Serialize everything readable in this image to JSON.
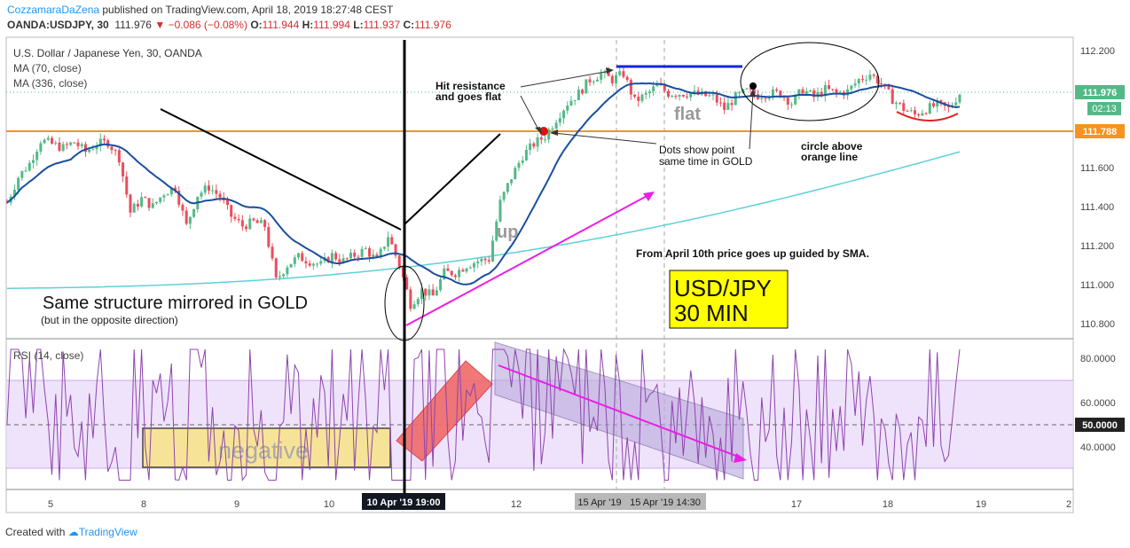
{
  "header": {
    "author": "CozzamaraDaZena",
    "published": " published on TradingView.com, April 18, 2019 18:27:48 CEST",
    "symbol": "OANDA:USDJPY, 30",
    "last": "111.976",
    "change": "−0.086 (−0.08%)",
    "o_label": "O:",
    "o": "111.944",
    "h_label": "H:",
    "h": "111.994",
    "l_label": "L:",
    "l": "111.937",
    "c_label": "C:",
    "c": "111.976"
  },
  "legend": {
    "pair": "U.S. Dollar / Japanese Yen, 30, OANDA",
    "ma70": "MA (70, close)",
    "ma336": "MA (336, close)",
    "rsi": "RSI (14, close)"
  },
  "price_axis": {
    "ticks": [
      "112.200",
      "112.000",
      "111.800",
      "111.600",
      "111.400",
      "111.200",
      "111.000",
      "110.800"
    ],
    "current_price": "111.976",
    "countdown": "02:13",
    "orange_level": "111.788"
  },
  "rsi_axis": {
    "ticks": [
      "80.0000",
      "60.0000",
      "40.0000"
    ],
    "mid_label": "50.0000"
  },
  "time_axis": {
    "labels": [
      "5",
      "8",
      "9",
      "10",
      "12",
      "17",
      "18",
      "19",
      "2"
    ],
    "highlight_1": "10 Apr '19   19:00",
    "highlight_2a": "15 Apr '19",
    "highlight_2b": "15 Apr '19   14:30"
  },
  "annotations": {
    "hit_resistance_1": "Hit resistance",
    "hit_resistance_2": "and goes flat",
    "flat": "flat",
    "up": "up",
    "dots_1": "Dots show point",
    "dots_2": "same time in GOLD",
    "circle_1": "circle above",
    "circle_2": "orange line",
    "sma_note": "From April 10th price goes up guided by SMA.",
    "box_1": "USD/JPY",
    "box_2": "30 MIN",
    "mirror": "Same structure mirrored in GOLD",
    "mirror_sub": "(but in the opposite direction)",
    "negative": "negative"
  },
  "footer": {
    "created": "Created with",
    "brand": "TradingView"
  },
  "colors": {
    "up": "#53b987",
    "down": "#eb4d5c",
    "ma70": "#1a4f9e",
    "ma336": "#5fd0d8",
    "orange": "#f7931e",
    "magenta": "#e91ee6",
    "rsi": "#8e44ad"
  },
  "chart_data": {
    "type": "candlestick",
    "symbol": "OANDA:USDJPY",
    "timeframe": "30",
    "yaxis_ticks": [
      110.8,
      111.0,
      111.2,
      111.4,
      111.6,
      111.8,
      112.0,
      112.2
    ],
    "ylim": [
      110.74,
      112.24
    ],
    "x_labels": [
      "5",
      "8",
      "9",
      "10",
      "12",
      "17",
      "18",
      "19",
      "2"
    ],
    "close_path": [
      [
        0,
        111.42
      ],
      [
        3,
        111.55
      ],
      [
        6,
        111.62
      ],
      [
        9,
        111.74
      ],
      [
        12,
        111.72
      ],
      [
        15,
        111.7
      ],
      [
        18,
        111.73
      ],
      [
        21,
        111.68
      ],
      [
        24,
        111.72
      ],
      [
        27,
        111.73
      ],
      [
        30,
        111.65
      ],
      [
        33,
        111.37
      ],
      [
        36,
        111.44
      ],
      [
        39,
        111.4
      ],
      [
        42,
        111.47
      ],
      [
        45,
        111.5
      ],
      [
        48,
        111.3
      ],
      [
        51,
        111.46
      ],
      [
        54,
        111.5
      ],
      [
        57,
        111.45
      ],
      [
        60,
        111.35
      ],
      [
        63,
        111.3
      ],
      [
        66,
        111.32
      ],
      [
        69,
        111.3
      ],
      [
        72,
        111.02
      ],
      [
        75,
        111.1
      ],
      [
        78,
        111.14
      ],
      [
        81,
        111.12
      ],
      [
        84,
        111.1
      ],
      [
        87,
        111.15
      ],
      [
        90,
        111.12
      ],
      [
        93,
        111.15
      ],
      [
        96,
        111.18
      ],
      [
        99,
        111.12
      ],
      [
        102,
        111.25
      ],
      [
        105,
        111.1
      ],
      [
        108,
        110.9
      ],
      [
        111,
        110.97
      ],
      [
        114,
        110.94
      ],
      [
        117,
        111.06
      ],
      [
        120,
        111.06
      ],
      [
        123,
        111.1
      ],
      [
        126,
        111.12
      ],
      [
        129,
        111.13
      ],
      [
        132,
        111.42
      ],
      [
        135,
        111.55
      ],
      [
        138,
        111.66
      ],
      [
        141,
        111.72
      ],
      [
        144,
        111.76
      ],
      [
        147,
        111.85
      ],
      [
        150,
        111.93
      ],
      [
        153,
        111.98
      ],
      [
        156,
        112.05
      ],
      [
        159,
        112.08
      ],
      [
        162,
        112.05
      ],
      [
        165,
        112.08
      ],
      [
        168,
        111.94
      ],
      [
        171,
        111.97
      ],
      [
        174,
        112.02
      ],
      [
        177,
        111.98
      ],
      [
        180,
        111.98
      ],
      [
        183,
        111.98
      ],
      [
        186,
        111.97
      ],
      [
        189,
        111.96
      ],
      [
        192,
        111.9
      ],
      [
        195,
        111.96
      ],
      [
        198,
        111.99
      ],
      [
        201,
        111.97
      ],
      [
        204,
        111.98
      ],
      [
        207,
        111.98
      ],
      [
        210,
        111.93
      ],
      [
        213,
        112.0
      ],
      [
        216,
        111.96
      ],
      [
        219,
        112.0
      ],
      [
        222,
        111.98
      ],
      [
        225,
        111.99
      ],
      [
        228,
        112.05
      ],
      [
        231,
        112.08
      ],
      [
        234,
        112.03
      ],
      [
        237,
        111.95
      ],
      [
        240,
        111.9
      ],
      [
        243,
        111.87
      ],
      [
        246,
        111.9
      ],
      [
        249,
        111.92
      ],
      [
        252,
        111.9
      ],
      [
        255,
        111.98
      ]
    ],
    "series": [
      {
        "name": "MA (70, close)"
      },
      {
        "name": "MA (336, close)"
      },
      {
        "name": "RSI (14, close)"
      }
    ],
    "orange_level": 111.788,
    "last_price": 111.976,
    "rsi_levels": [
      70,
      50,
      30
    ],
    "rsi_ticks": [
      40,
      60,
      80
    ]
  }
}
